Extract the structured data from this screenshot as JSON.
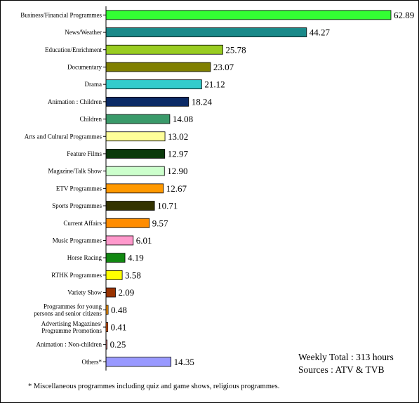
{
  "chart_data": {
    "type": "bar",
    "orientation": "horizontal",
    "categories": [
      "Business/Financial Programmes",
      "News/Weather",
      "Education/Enrichment",
      "Documentary",
      "Drama",
      "Animation : Children",
      "Children",
      "Arts and Cultural Programmes",
      "Feature Films",
      "Magazine/Talk Show",
      "ETV Programmes",
      "Sports Programmes",
      "Current Affairs",
      "Music Programmes",
      "Horse Racing",
      "RTHK Programmes",
      "Variety Show",
      [
        "Programmes for young",
        "persons and senior citizens"
      ],
      [
        "Advertising Magazines/",
        "Programme Promotions"
      ],
      "Animation : Non-children",
      "Others*"
    ],
    "values": [
      62.89,
      44.27,
      25.78,
      23.07,
      21.12,
      18.24,
      14.08,
      13.02,
      12.97,
      12.9,
      12.67,
      10.71,
      9.57,
      6.01,
      4.19,
      3.58,
      2.09,
      0.48,
      0.41,
      0.25,
      14.35
    ],
    "value_labels": [
      "62.89",
      "44.27",
      "25.78",
      "23.07",
      "21.12",
      "18.24",
      "14.08",
      "13.02",
      "12.97",
      "12.90",
      "12.67",
      "10.71",
      "9.57",
      "6.01",
      "4.19",
      "3.58",
      "2.09",
      "0.48",
      "0.41",
      "0.25",
      "14.35"
    ],
    "colors": [
      "#33ff33",
      "#1a8a8a",
      "#99cc22",
      "#808000",
      "#33cccc",
      "#0b2a66",
      "#3a9a6a",
      "#ffff99",
      "#0b3a0b",
      "#ccffcc",
      "#ff9900",
      "#333300",
      "#ff8c00",
      "#ff99cc",
      "#118811",
      "#ffff00",
      "#993300",
      "#ff9900",
      "#ff6600",
      "#ff9999",
      "#9999ff"
    ],
    "xlim": [
      0,
      62.89
    ],
    "grid": false,
    "legend": "none"
  },
  "weekly_total": "Weekly Total : 313 hours",
  "sources": "Sources : ATV & TVB",
  "footnote": "* Miscellaneous programmes including quiz and game shows, religious programmes."
}
